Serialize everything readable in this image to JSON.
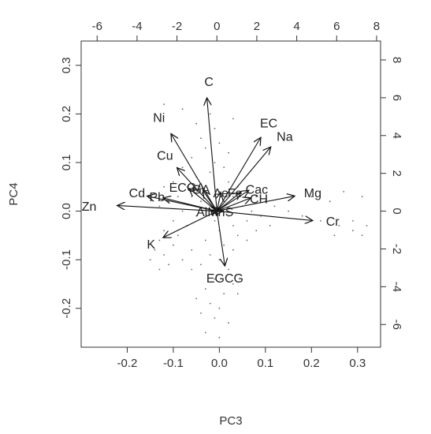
{
  "chart_data": {
    "type": "biplot",
    "xlabel": "PC3",
    "ylabel": "PC4",
    "xlim": [
      -0.3,
      0.35
    ],
    "ylim": [
      -0.28,
      0.35
    ],
    "xticks": [
      -0.2,
      -0.1,
      0.0,
      0.1,
      0.2,
      0.3
    ],
    "yticks": [
      -0.2,
      -0.1,
      0.0,
      0.1,
      0.2,
      0.3
    ],
    "xtick_labels": [
      "-0.2",
      "-0.1",
      "0.0",
      "0.1",
      "0.2",
      "0.3"
    ],
    "ytick_labels": [
      "-0.2",
      "-0.1",
      "0.0",
      "0.1",
      "0.2",
      "0.3"
    ],
    "top_axis": {
      "lim": [
        -6.8,
        8.2
      ],
      "ticks": [
        -6,
        -4,
        -2,
        0,
        2,
        4,
        6,
        8
      ],
      "labels": [
        "-6",
        "-4",
        "-2",
        "0",
        "2",
        "4",
        "6",
        "8"
      ]
    },
    "right_axis": {
      "lim": [
        -7.2,
        9.0
      ],
      "ticks": [
        -6,
        -4,
        -2,
        0,
        2,
        4,
        6,
        8
      ],
      "labels": [
        "-6",
        "-4",
        "-2",
        "0",
        "2",
        "4",
        "6",
        "8"
      ]
    },
    "loadings": [
      {
        "name": "C",
        "x": -0.5,
        "y": 6.0
      },
      {
        "name": "EC",
        "x": 2.2,
        "y": 3.9
      },
      {
        "name": "Na",
        "x": 2.7,
        "y": 3.4
      },
      {
        "name": "Ni",
        "x": -2.3,
        "y": 4.1
      },
      {
        "name": "Cu",
        "x": -2.0,
        "y": 2.3
      },
      {
        "name": "ECGA",
        "x": -1.4,
        "y": 1.2
      },
      {
        "name": "Cd",
        "x": -3.5,
        "y": 0.8
      },
      {
        "name": "Pb",
        "x": -2.7,
        "y": 0.7
      },
      {
        "name": "Zn",
        "x": -5.0,
        "y": 0.3
      },
      {
        "name": "Mg",
        "x": 3.9,
        "y": 0.8
      },
      {
        "name": "Cr",
        "x": 4.8,
        "y": -0.5
      },
      {
        "name": "K",
        "x": -2.7,
        "y": -1.4
      },
      {
        "name": "EGCG",
        "x": 0.4,
        "y": -2.9
      },
      {
        "name": "CH",
        "x": 1.7,
        "y": 0.7
      },
      {
        "name": "Cac",
        "x": 1.6,
        "y": 1.1
      },
      {
        "name": "Fe",
        "x": 1.2,
        "y": 1.0
      },
      {
        "name": "GA",
        "x": -0.7,
        "y": 1.1
      },
      {
        "name": "Al",
        "x": -0.3,
        "y": 0.0
      },
      {
        "name": "Mn",
        "x": 0.1,
        "y": 0.0
      },
      {
        "name": "S",
        "x": 0.3,
        "y": 0.0
      },
      {
        "name": "Ae",
        "x": 0.2,
        "y": 1.0
      }
    ],
    "label_texts": [
      {
        "name": "C",
        "text": "C",
        "x": -0.4,
        "y": 6.8
      },
      {
        "name": "EC",
        "text": "EC",
        "x": 2.6,
        "y": 4.6
      },
      {
        "name": "Na",
        "text": "Na",
        "x": 3.4,
        "y": 3.9
      },
      {
        "name": "Ni",
        "text": "Ni",
        "x": -2.9,
        "y": 4.9
      },
      {
        "name": "Cu",
        "text": "Cu",
        "x": -2.6,
        "y": 2.9
      },
      {
        "name": "ECGA",
        "text": "ECGA",
        "x": -1.5,
        "y": 1.2
      },
      {
        "name": "Cd",
        "text": "Cd",
        "x": -4.0,
        "y": 0.9
      },
      {
        "name": "Pb",
        "text": "Pb",
        "x": -3.0,
        "y": 0.7
      },
      {
        "name": "Zn",
        "text": "Zn",
        "x": -6.4,
        "y": 0.2
      },
      {
        "name": "Mg",
        "text": "Mg",
        "x": 4.8,
        "y": 0.9
      },
      {
        "name": "Cr",
        "text": "Cr",
        "x": 5.8,
        "y": -0.6
      },
      {
        "name": "K",
        "text": "K",
        "x": -3.3,
        "y": -1.8
      },
      {
        "name": "EGCG",
        "text": "EGCG",
        "x": 0.4,
        "y": -3.6
      },
      {
        "name": "GA",
        "text": "GA",
        "x": -0.8,
        "y": 1.1
      },
      {
        "name": "Ae",
        "text": "Ae",
        "x": 0.2,
        "y": 0.9
      },
      {
        "name": "Fe",
        "text": "Fe",
        "x": 0.9,
        "y": 0.9
      },
      {
        "name": "Cac",
        "text": "Cac",
        "x": 2.0,
        "y": 1.1
      },
      {
        "name": "CH",
        "text": "CH",
        "x": 2.1,
        "y": 0.6
      },
      {
        "name": "AlMnS",
        "text": "AlMnS",
        "x": -0.1,
        "y": -0.1
      }
    ],
    "observations": [
      [
        -0.12,
        0.22
      ],
      [
        -0.08,
        0.21
      ],
      [
        -0.02,
        0.2
      ],
      [
        0.03,
        0.19
      ],
      [
        -0.05,
        0.18
      ],
      [
        -0.01,
        0.17
      ],
      [
        -0.04,
        0.15
      ],
      [
        0.0,
        0.14
      ],
      [
        -0.03,
        0.13
      ],
      [
        0.02,
        0.12
      ],
      [
        -0.06,
        0.11
      ],
      [
        -0.01,
        0.1
      ],
      [
        0.01,
        0.09
      ],
      [
        -0.08,
        0.09
      ],
      [
        -0.02,
        0.08
      ],
      [
        -0.05,
        0.07
      ],
      [
        -0.1,
        0.06
      ],
      [
        0.02,
        0.06
      ],
      [
        -0.12,
        0.05
      ],
      [
        -0.07,
        0.05
      ],
      [
        0.04,
        0.05
      ],
      [
        -0.03,
        0.04
      ],
      [
        0.0,
        0.04
      ],
      [
        0.06,
        0.04
      ],
      [
        -0.09,
        0.03
      ],
      [
        -0.06,
        0.03
      ],
      [
        0.03,
        0.03
      ],
      [
        0.08,
        0.03
      ],
      [
        -0.11,
        0.02
      ],
      [
        -0.04,
        0.02
      ],
      [
        0.01,
        0.02
      ],
      [
        0.1,
        0.02
      ],
      [
        -0.13,
        0.01
      ],
      [
        -0.02,
        0.01
      ],
      [
        0.05,
        0.01
      ],
      [
        0.12,
        0.01
      ],
      [
        -0.08,
        0.0
      ],
      [
        0.0,
        0.0
      ],
      [
        0.07,
        0.0
      ],
      [
        0.15,
        0.0
      ],
      [
        -0.05,
        -0.01
      ],
      [
        0.02,
        -0.01
      ],
      [
        0.09,
        -0.01
      ],
      [
        0.18,
        -0.01
      ],
      [
        -0.1,
        -0.02
      ],
      [
        -0.01,
        -0.02
      ],
      [
        0.06,
        -0.02
      ],
      [
        0.22,
        -0.02
      ],
      [
        -0.07,
        -0.03
      ],
      [
        0.03,
        -0.03
      ],
      [
        0.11,
        -0.03
      ],
      [
        0.26,
        -0.03
      ],
      [
        -0.12,
        -0.04
      ],
      [
        0.0,
        -0.04
      ],
      [
        0.08,
        -0.04
      ],
      [
        0.29,
        -0.04
      ],
      [
        -0.09,
        -0.05
      ],
      [
        0.04,
        -0.05
      ],
      [
        0.31,
        -0.05
      ],
      [
        -0.13,
        -0.06
      ],
      [
        -0.03,
        -0.06
      ],
      [
        0.06,
        -0.06
      ],
      [
        -0.1,
        -0.07
      ],
      [
        0.01,
        -0.07
      ],
      [
        -0.14,
        -0.08
      ],
      [
        -0.06,
        -0.08
      ],
      [
        0.03,
        -0.08
      ],
      [
        -0.12,
        -0.09
      ],
      [
        -0.02,
        -0.09
      ],
      [
        -0.15,
        -0.1
      ],
      [
        -0.08,
        -0.1
      ],
      [
        0.0,
        -0.1
      ],
      [
        -0.11,
        -0.11
      ],
      [
        -0.04,
        -0.11
      ],
      [
        -0.13,
        -0.12
      ],
      [
        -0.06,
        -0.12
      ],
      [
        0.02,
        -0.12
      ],
      [
        -0.01,
        -0.14
      ],
      [
        0.03,
        -0.15
      ],
      [
        -0.03,
        -0.16
      ],
      [
        0.01,
        -0.17
      ],
      [
        0.04,
        -0.17
      ],
      [
        -0.05,
        -0.18
      ],
      [
        -0.02,
        -0.19
      ],
      [
        0.0,
        -0.2
      ],
      [
        -0.04,
        -0.21
      ],
      [
        -0.01,
        -0.22
      ],
      [
        0.02,
        -0.23
      ],
      [
        -0.03,
        -0.25
      ],
      [
        0.0,
        -0.26
      ],
      [
        0.27,
        0.04
      ],
      [
        0.31,
        0.03
      ],
      [
        0.24,
        0.02
      ],
      [
        0.29,
        -0.02
      ],
      [
        0.32,
        -0.03
      ],
      [
        0.2,
        0.03
      ],
      [
        0.25,
        -0.05
      ]
    ],
    "grid": false,
    "legend": "none",
    "colors": {
      "arrow": "#111111",
      "text": "#222222",
      "axis": "#333333",
      "points": "#666666"
    }
  }
}
